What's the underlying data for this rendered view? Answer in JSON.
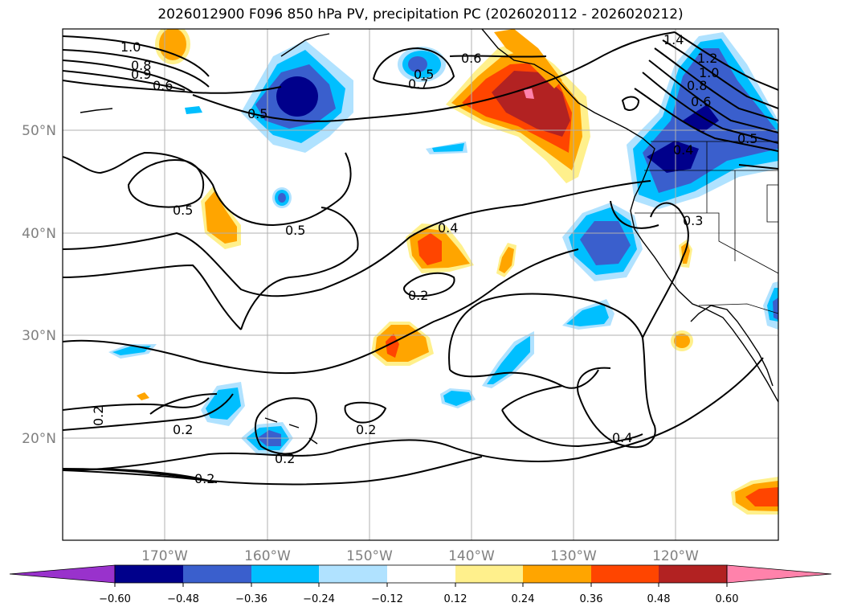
{
  "title": "2026012900 F096 850 hPa PV, precipitation PC (2026020112 - 2026020212)",
  "map": {
    "lon_ticks": [
      "170°W",
      "160°W",
      "150°W",
      "140°W",
      "130°W",
      "120°W"
    ],
    "lat_ticks": [
      "50°N",
      "40°N",
      "30°N",
      "20°N"
    ],
    "contour_labels": [
      "1.0",
      "0.8",
      "0.9",
      "0.6",
      "0.5",
      "0.7",
      "0.6",
      "1.4",
      "1.2",
      "1.0",
      "0.8",
      "0.6",
      "0.4",
      "0.5",
      "0.5",
      "0.5",
      "0.4",
      "0.3",
      "0.2",
      "0.2",
      "0.2",
      "0.2",
      "0.2",
      "0.4",
      "0.2",
      "0.5"
    ]
  },
  "colorbar": {
    "labels": [
      "−0.60",
      "−0.48",
      "−0.36",
      "−0.24",
      "−0.12",
      "0.12",
      "0.24",
      "0.36",
      "0.48",
      "0.60"
    ],
    "colors": [
      "#9932cc",
      "#00008b",
      "#3a5fcd",
      "#00bfff",
      "#b0e2ff",
      "#ffffff",
      "#fff08c",
      "#ffa500",
      "#ff4500",
      "#b22222",
      "#ff82ab"
    ]
  }
}
